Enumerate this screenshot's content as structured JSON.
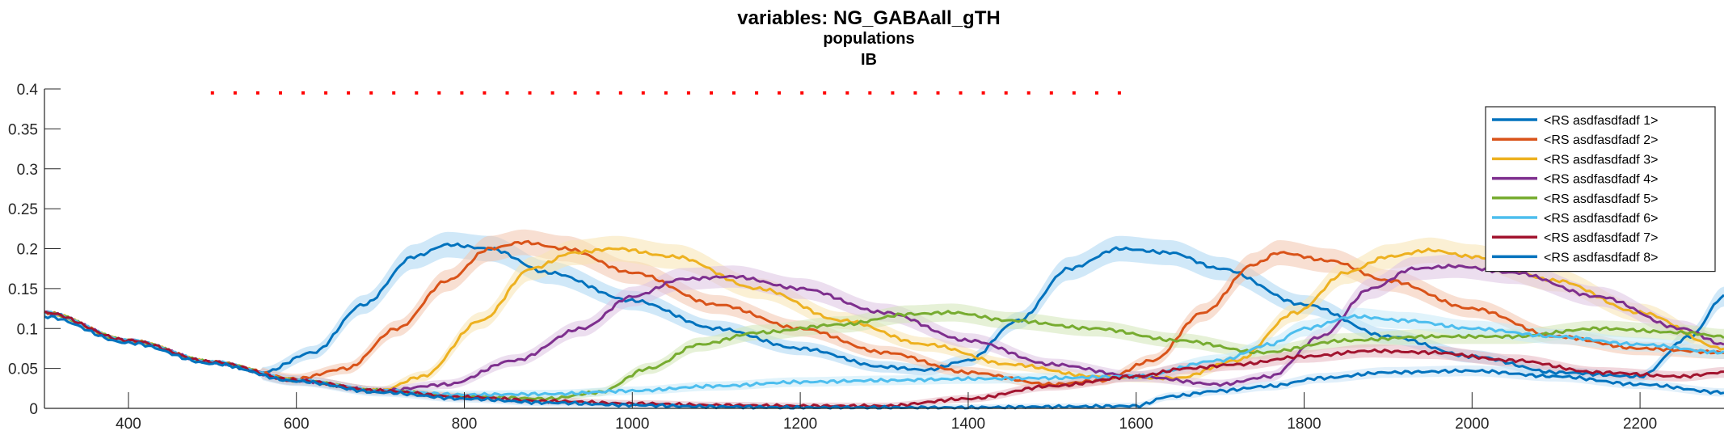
{
  "chart_data": {
    "type": "line",
    "title": "variables: NG_GABAall_gTH",
    "subtitle": [
      "populations",
      "IB"
    ],
    "xlabel": "",
    "ylabel": "",
    "xlim": [
      300,
      2300
    ],
    "ylim": [
      0,
      0.4
    ],
    "x_ticks": [
      "400",
      "600",
      "800",
      "1000",
      "1200",
      "1400",
      "1600",
      "1800",
      "2000",
      "2200"
    ],
    "y_ticks": [
      "0",
      "0.05",
      "0.1",
      "0.15",
      "0.2",
      "0.25",
      "0.3",
      "0.35",
      "0.4"
    ],
    "grid": false,
    "legend_position": "top-right",
    "shaded_error_band": true,
    "marker_row": {
      "color": "#ff0000",
      "y": 0.395,
      "x_start": 500,
      "x_end": 1580,
      "spacing": 27
    },
    "series": [
      {
        "name": "<RS asdfasdfadf 1>",
        "color": "#0072BD",
        "band": "#a9d6f2",
        "points": [
          [
            300,
            0.12
          ],
          [
            400,
            0.085
          ],
          [
            500,
            0.058
          ],
          [
            560,
            0.045
          ],
          [
            620,
            0.07
          ],
          [
            680,
            0.13
          ],
          [
            740,
            0.19
          ],
          [
            780,
            0.205
          ],
          [
            830,
            0.2
          ],
          [
            900,
            0.17
          ],
          [
            1000,
            0.135
          ],
          [
            1100,
            0.1
          ],
          [
            1200,
            0.075
          ],
          [
            1300,
            0.052
          ],
          [
            1350,
            0.048
          ],
          [
            1400,
            0.06
          ],
          [
            1460,
            0.11
          ],
          [
            1520,
            0.175
          ],
          [
            1580,
            0.2
          ],
          [
            1640,
            0.195
          ],
          [
            1700,
            0.175
          ],
          [
            1800,
            0.13
          ],
          [
            1900,
            0.09
          ],
          [
            2000,
            0.065
          ],
          [
            2100,
            0.045
          ],
          [
            2200,
            0.04
          ],
          [
            2260,
            0.09
          ],
          [
            2300,
            0.14
          ]
        ]
      },
      {
        "name": "<RS asdfasdfadf 2>",
        "color": "#D95319",
        "band": "#f3c4ad",
        "points": [
          [
            300,
            0.12
          ],
          [
            400,
            0.085
          ],
          [
            500,
            0.058
          ],
          [
            600,
            0.037
          ],
          [
            660,
            0.05
          ],
          [
            720,
            0.1
          ],
          [
            780,
            0.16
          ],
          [
            830,
            0.2
          ],
          [
            870,
            0.208
          ],
          [
            920,
            0.2
          ],
          [
            1000,
            0.17
          ],
          [
            1100,
            0.13
          ],
          [
            1200,
            0.1
          ],
          [
            1300,
            0.07
          ],
          [
            1400,
            0.045
          ],
          [
            1500,
            0.03
          ],
          [
            1560,
            0.035
          ],
          [
            1620,
            0.06
          ],
          [
            1680,
            0.12
          ],
          [
            1740,
            0.18
          ],
          [
            1770,
            0.195
          ],
          [
            1830,
            0.185
          ],
          [
            1900,
            0.16
          ],
          [
            2000,
            0.125
          ],
          [
            2100,
            0.09
          ],
          [
            2200,
            0.075
          ],
          [
            2300,
            0.07
          ]
        ]
      },
      {
        "name": "<RS asdfasdfadf 3>",
        "color": "#EDB120",
        "band": "#f8e3b0",
        "points": [
          [
            300,
            0.12
          ],
          [
            400,
            0.085
          ],
          [
            500,
            0.058
          ],
          [
            600,
            0.035
          ],
          [
            700,
            0.022
          ],
          [
            750,
            0.04
          ],
          [
            820,
            0.11
          ],
          [
            880,
            0.175
          ],
          [
            930,
            0.195
          ],
          [
            980,
            0.2
          ],
          [
            1050,
            0.19
          ],
          [
            1150,
            0.15
          ],
          [
            1250,
            0.11
          ],
          [
            1350,
            0.08
          ],
          [
            1450,
            0.055
          ],
          [
            1550,
            0.04
          ],
          [
            1650,
            0.038
          ],
          [
            1720,
            0.06
          ],
          [
            1790,
            0.12
          ],
          [
            1850,
            0.17
          ],
          [
            1900,
            0.19
          ],
          [
            1950,
            0.198
          ],
          [
            2000,
            0.19
          ],
          [
            2100,
            0.16
          ],
          [
            2200,
            0.12
          ],
          [
            2300,
            0.075
          ]
        ]
      },
      {
        "name": "<RS asdfasdfadf 4>",
        "color": "#7E2F8E",
        "band": "#dcc2e2",
        "points": [
          [
            300,
            0.12
          ],
          [
            400,
            0.085
          ],
          [
            500,
            0.058
          ],
          [
            600,
            0.035
          ],
          [
            700,
            0.022
          ],
          [
            780,
            0.03
          ],
          [
            860,
            0.06
          ],
          [
            940,
            0.1
          ],
          [
            1000,
            0.14
          ],
          [
            1060,
            0.162
          ],
          [
            1120,
            0.165
          ],
          [
            1200,
            0.15
          ],
          [
            1300,
            0.12
          ],
          [
            1400,
            0.085
          ],
          [
            1500,
            0.055
          ],
          [
            1600,
            0.04
          ],
          [
            1700,
            0.03
          ],
          [
            1760,
            0.04
          ],
          [
            1820,
            0.09
          ],
          [
            1880,
            0.15
          ],
          [
            1930,
            0.175
          ],
          [
            1980,
            0.178
          ],
          [
            2050,
            0.17
          ],
          [
            2150,
            0.14
          ],
          [
            2250,
            0.1
          ],
          [
            2300,
            0.08
          ]
        ]
      },
      {
        "name": "<RS asdfasdfadf 5>",
        "color": "#77AC30",
        "band": "#d2e6b6",
        "points": [
          [
            300,
            0.12
          ],
          [
            400,
            0.085
          ],
          [
            500,
            0.058
          ],
          [
            600,
            0.035
          ],
          [
            700,
            0.022
          ],
          [
            800,
            0.015
          ],
          [
            900,
            0.012
          ],
          [
            960,
            0.02
          ],
          [
            1020,
            0.05
          ],
          [
            1080,
            0.08
          ],
          [
            1150,
            0.095
          ],
          [
            1250,
            0.105
          ],
          [
            1330,
            0.118
          ],
          [
            1380,
            0.12
          ],
          [
            1450,
            0.11
          ],
          [
            1550,
            0.1
          ],
          [
            1650,
            0.085
          ],
          [
            1750,
            0.07
          ],
          [
            1850,
            0.085
          ],
          [
            1950,
            0.09
          ],
          [
            2050,
            0.09
          ],
          [
            2150,
            0.1
          ],
          [
            2250,
            0.095
          ],
          [
            2300,
            0.09
          ]
        ]
      },
      {
        "name": "<RS asdfasdfadf 6>",
        "color": "#4DBEEE",
        "band": "#c6e9f8",
        "points": [
          [
            300,
            0.12
          ],
          [
            400,
            0.085
          ],
          [
            500,
            0.058
          ],
          [
            600,
            0.035
          ],
          [
            700,
            0.022
          ],
          [
            800,
            0.017
          ],
          [
            900,
            0.018
          ],
          [
            1000,
            0.022
          ],
          [
            1100,
            0.028
          ],
          [
            1200,
            0.033
          ],
          [
            1300,
            0.035
          ],
          [
            1400,
            0.037
          ],
          [
            1500,
            0.038
          ],
          [
            1600,
            0.04
          ],
          [
            1700,
            0.06
          ],
          [
            1760,
            0.08
          ],
          [
            1800,
            0.1
          ],
          [
            1860,
            0.115
          ],
          [
            1920,
            0.11
          ],
          [
            2000,
            0.1
          ],
          [
            2100,
            0.09
          ],
          [
            2200,
            0.08
          ],
          [
            2300,
            0.07
          ]
        ]
      },
      {
        "name": "<RS asdfasdfadf 7>",
        "color": "#A2142F",
        "band": "#e6b5bf",
        "points": [
          [
            300,
            0.12
          ],
          [
            400,
            0.085
          ],
          [
            500,
            0.058
          ],
          [
            600,
            0.035
          ],
          [
            700,
            0.022
          ],
          [
            800,
            0.014
          ],
          [
            900,
            0.009
          ],
          [
            1000,
            0.006
          ],
          [
            1100,
            0.004
          ],
          [
            1200,
            0.003
          ],
          [
            1300,
            0.003
          ],
          [
            1400,
            0.012
          ],
          [
            1500,
            0.028
          ],
          [
            1600,
            0.04
          ],
          [
            1660,
            0.05
          ],
          [
            1720,
            0.055
          ],
          [
            1800,
            0.065
          ],
          [
            1880,
            0.072
          ],
          [
            1950,
            0.07
          ],
          [
            2050,
            0.06
          ],
          [
            2150,
            0.045
          ],
          [
            2250,
            0.04
          ],
          [
            2300,
            0.045
          ]
        ]
      },
      {
        "name": "<RS asdfasdfadf 8>",
        "color": "#0072BD",
        "band": "#c6e2f5",
        "points": [
          [
            300,
            0.115
          ],
          [
            400,
            0.082
          ],
          [
            500,
            0.056
          ],
          [
            600,
            0.034
          ],
          [
            700,
            0.02
          ],
          [
            800,
            0.012
          ],
          [
            900,
            0.007
          ],
          [
            1000,
            0.004
          ],
          [
            1100,
            0.002
          ],
          [
            1200,
            0.001
          ],
          [
            1300,
            0.001
          ],
          [
            1400,
            0.001
          ],
          [
            1500,
            0.002
          ],
          [
            1600,
            0.003
          ],
          [
            1640,
            0.015
          ],
          [
            1700,
            0.022
          ],
          [
            1760,
            0.028
          ],
          [
            1820,
            0.038
          ],
          [
            1900,
            0.045
          ],
          [
            2000,
            0.047
          ],
          [
            2100,
            0.04
          ],
          [
            2200,
            0.03
          ],
          [
            2300,
            0.02
          ]
        ]
      }
    ]
  }
}
